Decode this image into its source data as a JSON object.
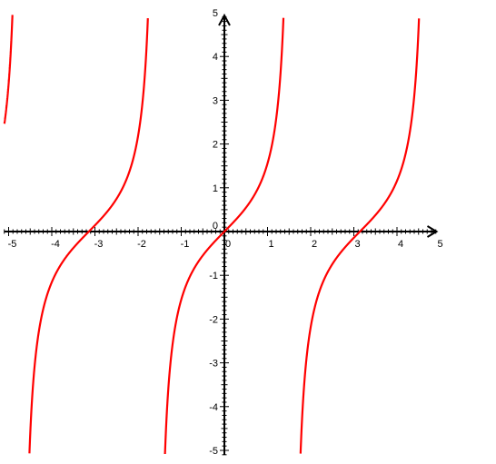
{
  "chart_data": {
    "type": "line",
    "title": "",
    "xlabel": "",
    "ylabel": "",
    "xlim": [
      -5.1,
      5
    ],
    "ylim": [
      -5.1,
      5
    ],
    "grid": false,
    "legend": "none",
    "x_ticks": [
      -5,
      -4,
      -3,
      -2,
      -1,
      0,
      1,
      2,
      3,
      4,
      5
    ],
    "x_tick_labels": [
      "-5",
      "-4",
      "-3",
      "-2",
      "-1",
      "0",
      "1",
      "2",
      "3",
      "4",
      "5"
    ],
    "y_ticks": [
      -5,
      -4,
      -3,
      -2,
      -1,
      0,
      1,
      2,
      3,
      4,
      5
    ],
    "y_tick_labels": [
      "-5",
      "-4",
      "-3",
      "-2",
      "-1",
      "0",
      "1",
      "2",
      "3",
      "4",
      "5"
    ],
    "series": [
      {
        "function": "tan(x)",
        "color": "#ff0000",
        "x_range": [
          -5.1,
          4.9
        ],
        "asymptotes": [
          -4.712,
          -1.571,
          1.571,
          4.712
        ],
        "sample_points": [
          {
            "x": -5,
            "y": 3.38
          },
          {
            "x": -4,
            "y": -1.16
          },
          {
            "x": -3.14,
            "y": 0
          },
          {
            "x": -2,
            "y": 2.19
          },
          {
            "x": -1,
            "y": -1.56
          },
          {
            "x": 0,
            "y": 0
          },
          {
            "x": 1,
            "y": 1.56
          },
          {
            "x": 2,
            "y": -2.19
          },
          {
            "x": 3.14,
            "y": 0
          },
          {
            "x": 4,
            "y": 1.16
          }
        ]
      }
    ]
  },
  "colors": {
    "axis": "#000000",
    "curve": "#ff0000",
    "background": "#ffffff"
  }
}
